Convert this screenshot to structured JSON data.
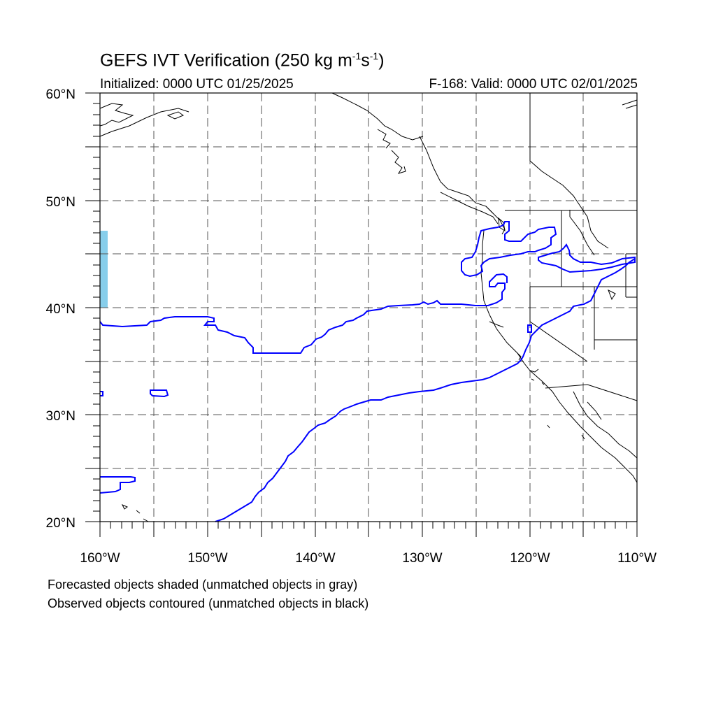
{
  "header": {
    "title_main": "GEFS IVT Verification (250 kg m",
    "title_exp1": "-1",
    "title_mid": "s",
    "title_exp2": "-1",
    "title_end": ")",
    "initialized": "Initialized: 0000 UTC 01/25/2025",
    "valid": "F-168: Valid: 0000 UTC 02/01/2025"
  },
  "axes": {
    "lat_labels": [
      "60°N",
      "50°N",
      "40°N",
      "30°N",
      "20°N"
    ],
    "lon_labels": [
      "160°W",
      "150°W",
      "140°W",
      "130°W",
      "120°W",
      "110°W"
    ],
    "lat_range": [
      20,
      60
    ],
    "lon_range": [
      -160,
      -110
    ]
  },
  "colors": {
    "observed_matched": "#0000ff",
    "forecast_matched": "#87ceeb",
    "coastline": "#000000",
    "grid": "#555555"
  },
  "caption": {
    "line1": "Forecasted objects shaded (unmatched objects in gray)",
    "line2": "Observed objects contoured (unmatched objects in black)"
  }
}
